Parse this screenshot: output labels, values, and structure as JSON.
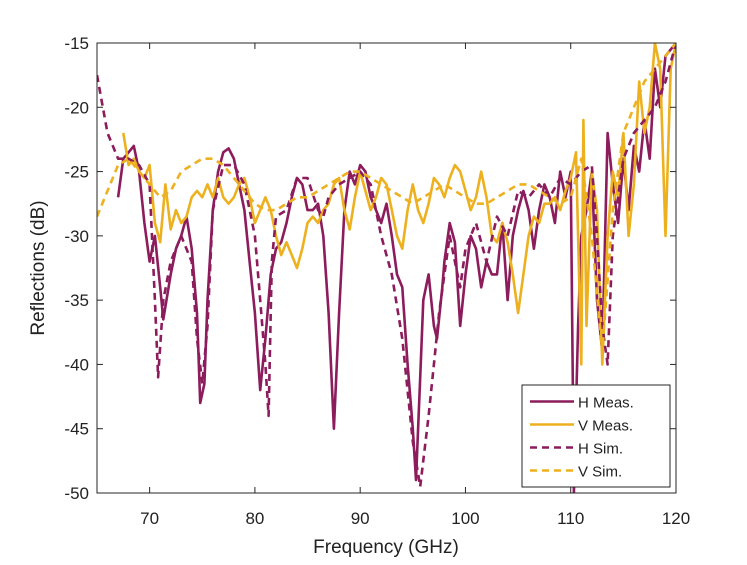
{
  "chart_data": {
    "type": "line",
    "xlabel": "Frequency (GHz)",
    "ylabel": "Reflections (dB)",
    "xlim": [
      65,
      120
    ],
    "xticks": [
      70,
      80,
      90,
      100,
      110,
      120
    ],
    "ylim": [
      -50,
      -15
    ],
    "yticks": [
      -50,
      -45,
      -40,
      -35,
      -30,
      -25,
      -20,
      -15
    ],
    "legend": "lower right",
    "series": [
      {
        "name": "H Meas.",
        "color": "#8c1c5c",
        "dash": false,
        "x": [
          67,
          67.5,
          68,
          68.5,
          69,
          69.5,
          70,
          70.5,
          71,
          71.3,
          72,
          72.5,
          73,
          73.5,
          74,
          74.5,
          74.8,
          75.2,
          75.5,
          76,
          76.5,
          77,
          77.5,
          78,
          78.5,
          79,
          79.5,
          80,
          80.5,
          81,
          81.5,
          82,
          82.5,
          83,
          83.5,
          84,
          84.5,
          85,
          85.5,
          86,
          86.5,
          87,
          87.5,
          88,
          88.5,
          89,
          89.5,
          90,
          90.5,
          91,
          91.5,
          92,
          92.5,
          93,
          93.5,
          94,
          94.5,
          95,
          95.3,
          95.7,
          96,
          96.5,
          97,
          97.3,
          97.8,
          98,
          98.5,
          99,
          99.5,
          100,
          100.5,
          101,
          101.5,
          102,
          102.5,
          103,
          103.5,
          104,
          104.5,
          105,
          105.5,
          106,
          106.5,
          107,
          107.5,
          108,
          108.5,
          109,
          109.5,
          110,
          110.3,
          110.7,
          111,
          111.5,
          112,
          112.5,
          113,
          113.5,
          114,
          114.5,
          115,
          115.5,
          116,
          116.5,
          117,
          117.5,
          118,
          118.5,
          119,
          120
        ],
        "values": [
          -27,
          -24,
          -23.5,
          -23,
          -25,
          -29,
          -32,
          -30,
          -34,
          -36.5,
          -33,
          -31,
          -30,
          -28.5,
          -31,
          -36,
          -43,
          -41.5,
          -35,
          -28,
          -25,
          -23.5,
          -23.2,
          -24,
          -26,
          -28,
          -32,
          -36,
          -42,
          -38,
          -33,
          -31,
          -30.5,
          -29,
          -27,
          -25.5,
          -26,
          -28,
          -28,
          -27.5,
          -30,
          -36,
          -45,
          -36,
          -28,
          -25,
          -26,
          -24.5,
          -25,
          -27,
          -28,
          -29,
          -27.5,
          -30,
          -33,
          -34,
          -40,
          -45,
          -49,
          -41,
          -35,
          -33,
          -37,
          -38,
          -34,
          -32,
          -29,
          -30.5,
          -37,
          -33,
          -30,
          -31,
          -34,
          -32,
          -33,
          -33,
          -29,
          -35,
          -30,
          -28,
          -26.5,
          -28,
          -31,
          -28,
          -26,
          -27,
          -29,
          -25,
          -27,
          -25,
          -50,
          -37,
          -30,
          -28,
          -25,
          -35,
          -39,
          -22,
          -26,
          -29,
          -24,
          -28,
          -23,
          -25,
          -21,
          -24,
          -17,
          -20,
          -16,
          -15
        ]
      },
      {
        "name": "V Meas.",
        "color": "#edb120",
        "dash": false,
        "x": [
          67.5,
          68,
          68.5,
          69,
          69.5,
          70,
          70.5,
          71,
          71.5,
          72,
          72.5,
          73,
          73.5,
          74,
          74.5,
          75,
          75.5,
          76,
          76.5,
          77,
          77.5,
          78,
          78.5,
          79,
          79.5,
          80,
          80.5,
          81,
          81.5,
          82,
          82.5,
          83,
          83.5,
          84,
          84.5,
          85,
          85.5,
          86,
          86.5,
          87,
          87.5,
          88,
          88.5,
          89,
          89.5,
          90,
          90.5,
          91,
          91.5,
          92,
          92.5,
          93,
          93.5,
          94,
          94.5,
          95,
          95.5,
          96,
          96.5,
          97,
          97.5,
          98,
          98.5,
          99,
          99.5,
          100,
          100.5,
          101,
          101.5,
          102,
          102.5,
          103,
          103.5,
          104,
          104.5,
          105,
          105.5,
          106,
          106.5,
          107,
          107.5,
          108,
          108.5,
          109,
          109.5,
          110,
          110.5,
          111,
          111.2,
          111.5,
          112,
          112.5,
          113,
          113.5,
          114,
          114.5,
          115,
          115.5,
          116,
          116.5,
          117,
          117.5,
          118,
          118.5,
          119,
          119.5,
          120
        ],
        "values": [
          -22,
          -24.5,
          -24,
          -25,
          -25.5,
          -24.5,
          -29,
          -30.5,
          -26,
          -29.5,
          -28,
          -29,
          -28.5,
          -27,
          -26.5,
          -27,
          -26,
          -27,
          -25.5,
          -27,
          -27.5,
          -27,
          -26,
          -25.5,
          -27,
          -29,
          -28,
          -27,
          -28,
          -30,
          -31.5,
          -30.5,
          -31.5,
          -32.5,
          -31,
          -29,
          -28.5,
          -29,
          -28,
          -27.5,
          -26,
          -25.5,
          -28,
          -29.5,
          -27,
          -25,
          -26.5,
          -28,
          -27,
          -25.5,
          -26,
          -28,
          -30,
          -31,
          -28,
          -26,
          -28,
          -29,
          -27.5,
          -25.5,
          -26,
          -27,
          -25.5,
          -24.5,
          -25,
          -26.5,
          -28,
          -27,
          -25,
          -27,
          -30,
          -30.5,
          -29,
          -30.5,
          -33,
          -36,
          -33,
          -30,
          -28.5,
          -29,
          -27.5,
          -27.5,
          -27,
          -28,
          -26.5,
          -25.5,
          -23.5,
          -40,
          -21,
          -37,
          -25,
          -28,
          -40,
          -30,
          -25,
          -27,
          -22,
          -30,
          -26,
          -18,
          -22,
          -20,
          -15,
          -17,
          -30,
          -17,
          -15
        ]
      },
      {
        "name": "H Sim.",
        "color": "#8c1c5c",
        "dash": true,
        "x": [
          65,
          66,
          67,
          68,
          69,
          70,
          70.5,
          70.8,
          71.3,
          72,
          73,
          74,
          74.5,
          75,
          75.5,
          76,
          77,
          78,
          79,
          80,
          80.5,
          81,
          81.3,
          81.6,
          82,
          83,
          84,
          85,
          86,
          86.5,
          87,
          88,
          89,
          90,
          91,
          92,
          93,
          94,
          95,
          95.7,
          96.5,
          97,
          97.5,
          98,
          98.5,
          99,
          99.5,
          100,
          101,
          102,
          103,
          104,
          105,
          106,
          107,
          108,
          109,
          110,
          111,
          112,
          112.5,
          113,
          113.5,
          114,
          115,
          116,
          117,
          118,
          119,
          120
        ],
        "values": [
          -17.5,
          -22,
          -24,
          -24,
          -24.5,
          -26,
          -35,
          -41,
          -35,
          -32,
          -30,
          -32,
          -38,
          -41.5,
          -37,
          -28,
          -24.5,
          -24.5,
          -26,
          -30,
          -35,
          -40,
          -44,
          -32,
          -28.5,
          -28,
          -25.5,
          -25.5,
          -28,
          -28.5,
          -27,
          -26,
          -25.5,
          -25,
          -26,
          -30,
          -33,
          -38,
          -46,
          -49.5,
          -44,
          -40,
          -36,
          -33,
          -30,
          -32,
          -34,
          -31,
          -29,
          -32,
          -28.5,
          -30,
          -26.5,
          -27,
          -26,
          -27,
          -25.5,
          -26,
          -25,
          -24.5,
          -30,
          -37,
          -40,
          -30,
          -24,
          -22,
          -21,
          -20,
          -18,
          -15
        ]
      },
      {
        "name": "V Sim.",
        "color": "#edb120",
        "dash": true,
        "x": [
          65,
          66,
          67,
          68,
          69,
          70,
          71,
          72,
          73,
          74,
          75,
          76,
          77,
          78,
          79,
          80,
          81,
          82,
          83,
          84,
          85,
          86,
          87,
          88,
          89,
          90,
          91,
          92,
          93,
          94,
          95,
          96,
          97,
          98,
          99,
          100,
          101,
          102,
          103,
          104,
          105,
          106,
          107,
          108,
          109,
          110,
          111,
          112,
          113,
          114,
          115,
          116,
          117,
          118,
          119,
          120
        ],
        "values": [
          -28.5,
          -26.5,
          -24.5,
          -24,
          -25,
          -26,
          -27,
          -26.5,
          -25,
          -24.5,
          -24,
          -24,
          -24.5,
          -25.5,
          -26.5,
          -27.5,
          -28,
          -28,
          -27.5,
          -27,
          -27,
          -26.5,
          -26,
          -25.5,
          -25,
          -25,
          -25.5,
          -26,
          -26.5,
          -27,
          -27.5,
          -27,
          -26.5,
          -26,
          -26.5,
          -27,
          -27.5,
          -27.5,
          -27,
          -26.5,
          -26,
          -26,
          -26.5,
          -27,
          -27.5,
          -27,
          -24,
          -30,
          -39,
          -28,
          -22,
          -20,
          -18,
          -17,
          -16,
          -15
        ]
      }
    ]
  }
}
